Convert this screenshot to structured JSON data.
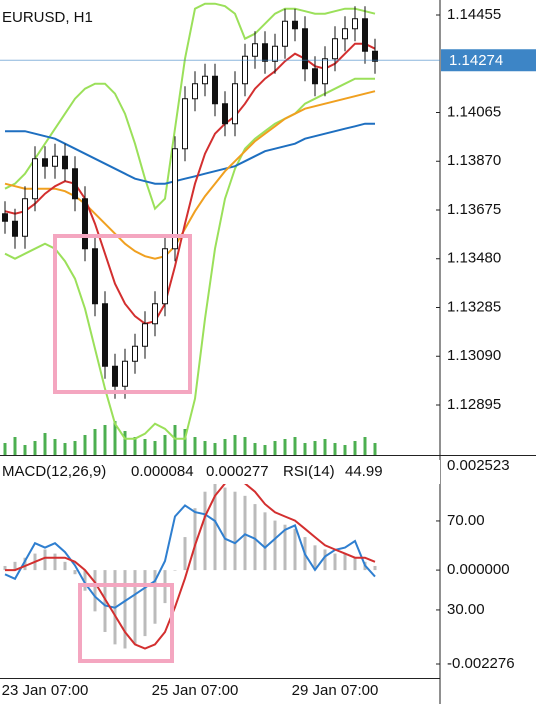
{
  "chart_data": [
    {
      "type": "candlestick",
      "title": "EURUSD, H1",
      "categories": [
        null,
        null,
        null,
        null,
        "23 Jan 07:00",
        null,
        null,
        null,
        null,
        null,
        null,
        null,
        null,
        null,
        null,
        null,
        null,
        null,
        null,
        "25 Jan 07:00",
        null,
        null,
        null,
        null,
        null,
        null,
        null,
        null,
        null,
        null,
        null,
        null,
        null,
        "29 Jan 07:00",
        null,
        null,
        null,
        null
      ],
      "open": [
        1.1366,
        1.1363,
        1.1357,
        1.1372,
        1.1388,
        1.1385,
        1.1389,
        1.1384,
        1.1372,
        1.1352,
        1.133,
        1.1305,
        1.1297,
        1.1307,
        1.1313,
        1.1322,
        1.133,
        1.1352,
        1.1392,
        1.1412,
        1.1418,
        1.1421,
        1.141,
        1.1402,
        1.1418,
        1.1429,
        1.1434,
        1.1427,
        1.1433,
        1.1443,
        1.144,
        1.1424,
        1.1418,
        1.1428,
        1.1436,
        1.144,
        1.1444,
        1.1431
      ],
      "high": [
        1.1371,
        1.1368,
        1.1377,
        1.1393,
        1.1393,
        1.1394,
        1.1394,
        1.1389,
        1.1377,
        1.1357,
        1.1335,
        1.131,
        1.1312,
        1.1318,
        1.1327,
        1.1335,
        1.1357,
        1.1397,
        1.1417,
        1.1423,
        1.1426,
        1.1426,
        1.1415,
        1.1423,
        1.1434,
        1.1439,
        1.1439,
        1.1438,
        1.1448,
        1.1448,
        1.1445,
        1.1429,
        1.1433,
        1.1441,
        1.1445,
        1.1449,
        1.1449,
        1.1436
      ],
      "low": [
        1.1358,
        1.1352,
        1.1352,
        1.1367,
        1.138,
        1.138,
        1.1379,
        1.1367,
        1.1347,
        1.1325,
        1.13,
        1.1292,
        1.1292,
        1.1302,
        1.1308,
        1.1317,
        1.1325,
        1.1347,
        1.1387,
        1.1407,
        1.1413,
        1.1405,
        1.1397,
        1.1397,
        1.1413,
        1.1424,
        1.1422,
        1.1422,
        1.1428,
        1.1435,
        1.1419,
        1.1413,
        1.1413,
        1.1423,
        1.1431,
        1.1435,
        1.1426,
        1.1422
      ],
      "close": [
        1.1363,
        1.1357,
        1.1372,
        1.1388,
        1.1385,
        1.1389,
        1.1384,
        1.1372,
        1.1352,
        1.133,
        1.1305,
        1.1297,
        1.1307,
        1.1313,
        1.1322,
        1.133,
        1.1352,
        1.1392,
        1.1412,
        1.1418,
        1.1421,
        1.141,
        1.1402,
        1.1418,
        1.1429,
        1.1434,
        1.1427,
        1.1433,
        1.1443,
        1.144,
        1.1424,
        1.1418,
        1.1428,
        1.1436,
        1.144,
        1.1444,
        1.1431,
        1.1427
      ],
      "candle_color": "#111111",
      "series": [
        {
          "color": "#9be05a",
          "values": [
            1.1376,
            1.1378,
            1.1382,
            1.1388,
            1.1394,
            1.14,
            1.1406,
            1.1412,
            1.1416,
            1.1418,
            1.1418,
            1.1414,
            1.1406,
            1.1394,
            1.138,
            1.1368,
            1.1372,
            1.14,
            1.1428,
            1.1448,
            1.145,
            1.145,
            1.1449,
            1.1446,
            1.1436,
            1.1438,
            1.1442,
            1.1446,
            1.1448,
            1.1448,
            1.1447,
            1.1446,
            1.1446,
            1.1447,
            1.1448,
            1.1448,
            1.1447,
            1.1446
          ]
        },
        {
          "color": "#9be05a",
          "values": [
            1.135,
            1.1348,
            1.135,
            1.1352,
            1.1354,
            1.1352,
            1.1347,
            1.134,
            1.1328,
            1.1312,
            1.1296,
            1.1282,
            1.1276,
            1.1276,
            1.1278,
            1.1282,
            1.128,
            1.1276,
            1.1276,
            1.1292,
            1.1324,
            1.1352,
            1.1372,
            1.1384,
            1.1392,
            1.1396,
            1.1399,
            1.1402,
            1.1404,
            1.1406,
            1.141,
            1.1412,
            1.1414,
            1.1416,
            1.1418,
            1.142,
            1.142,
            1.142
          ]
        },
        {
          "color": "#1e6fc0",
          "values": [
            1.1399,
            1.1399,
            1.1399,
            1.1398,
            1.1397,
            1.1396,
            1.1394,
            1.1392,
            1.139,
            1.1388,
            1.1386,
            1.1384,
            1.1382,
            1.138,
            1.1379,
            1.1378,
            1.1378,
            1.1379,
            1.138,
            1.1381,
            1.1382,
            1.1383,
            1.1384,
            1.1385,
            1.1387,
            1.1389,
            1.1391,
            1.1392,
            1.1393,
            1.1394,
            1.1396,
            1.1397,
            1.1398,
            1.1399,
            1.14,
            1.1401,
            1.1402,
            1.1402
          ]
        },
        {
          "color": "#f0a020",
          "values": [
            1.1378,
            1.1377,
            1.1376,
            1.1376,
            1.1376,
            1.1376,
            1.1375,
            1.1373,
            1.137,
            1.1366,
            1.1362,
            1.1358,
            1.1354,
            1.1351,
            1.1349,
            1.1348,
            1.1349,
            1.1353,
            1.136,
            1.1367,
            1.1373,
            1.1378,
            1.1383,
            1.1387,
            1.1391,
            1.1395,
            1.1398,
            1.1401,
            1.1404,
            1.1406,
            1.1408,
            1.1409,
            1.141,
            1.1411,
            1.1412,
            1.1413,
            1.1414,
            1.1415
          ]
        },
        {
          "color": "#d32f2f",
          "values": [
            1.1367,
            1.1366,
            1.1367,
            1.137,
            1.1374,
            1.1377,
            1.1379,
            1.1378,
            1.1372,
            1.1362,
            1.135,
            1.1338,
            1.133,
            1.1325,
            1.1322,
            1.1323,
            1.133,
            1.1345,
            1.1362,
            1.1378,
            1.139,
            1.1398,
            1.1402,
            1.1405,
            1.141,
            1.1416,
            1.142,
            1.1423,
            1.1427,
            1.143,
            1.1428,
            1.1425,
            1.1424,
            1.1426,
            1.143,
            1.1434,
            1.1434,
            1.1432
          ]
        }
      ],
      "volume": {
        "color": "#4caf50",
        "values": [
          12,
          18,
          10,
          14,
          22,
          16,
          12,
          14,
          20,
          26,
          30,
          34,
          24,
          18,
          16,
          14,
          20,
          30,
          26,
          18,
          14,
          12,
          16,
          20,
          18,
          12,
          10,
          14,
          16,
          18,
          12,
          14,
          16,
          12,
          10,
          14,
          18,
          12
        ]
      },
      "ylim": [
        1.12695,
        1.14515
      ],
      "yticks": [
        1.14455,
        1.14065,
        {
          "value": 1.1387,
          "label": "1.13870"
        },
        1.13675,
        {
          "value": 1.1348,
          "label": "1.13480"
        },
        1.13285,
        {
          "value": 1.1309,
          "label": "1.13090"
        },
        1.12895
      ],
      "current_price": 1.14274,
      "current_price_color": "#3d85c6"
    },
    {
      "type": "line",
      "title": "MACD(12,26,9)",
      "macd_value": 8.4e-05,
      "signal_value": 0.000277,
      "rsi_title": "RSI(14)",
      "rsi_value": 44.99,
      "histogram": {
        "color": "#bbbbbb",
        "values": [
          0.0001,
          0.0002,
          0.0003,
          0.0004,
          0.0005,
          0.0004,
          0.0002,
          -0.0001,
          -0.0005,
          -0.001,
          -0.0015,
          -0.0018,
          -0.0019,
          -0.0018,
          -0.0016,
          -0.0013,
          -0.0008,
          0,
          0.0008,
          0.0015,
          0.0019,
          0.0021,
          0.002,
          0.0019,
          0.0018,
          0.0016,
          0.0014,
          0.0012,
          0.0011,
          0.001,
          0.0008,
          0.0006,
          0.0005,
          0.0004,
          0.0004,
          0.0003,
          0.0002,
          0.0001
        ]
      },
      "signal": {
        "color": "#d32f2f",
        "values": [
          0,
          0,
          0.0001,
          0.0002,
          0.0003,
          0.0003,
          0.0003,
          0.0002,
          0,
          -0.0003,
          -0.0007,
          -0.0011,
          -0.0015,
          -0.0018,
          -0.0019,
          -0.0018,
          -0.0015,
          -0.0009,
          -0.0002,
          0.0006,
          0.0013,
          0.0018,
          0.0021,
          0.0022,
          0.0021,
          0.0019,
          0.0016,
          0.0014,
          0.0013,
          0.0012,
          0.001,
          0.0008,
          0.0006,
          0.0005,
          0.0004,
          0.0003,
          0.0003,
          0.0002
        ]
      },
      "rsi": {
        "color": "#2f7fd0",
        "axis": "y2",
        "values": [
          46,
          44,
          52,
          60,
          58,
          60,
          56,
          50,
          42,
          36,
          32,
          31,
          34,
          37,
          40,
          43,
          52,
          72,
          77,
          74,
          73,
          70,
          62,
          60,
          64,
          62,
          58,
          62,
          66,
          68,
          55,
          48,
          54,
          57,
          58,
          61,
          50,
          45
        ]
      },
      "ylim": [
        -0.002276,
        0.002523
      ],
      "yticks": [
        0.002523,
        {
          "value": 0,
          "label": "0.000000"
        },
        -0.002276
      ],
      "y2lim": [
        5.7,
        94.7
      ],
      "y2ticks": [
        {
          "value": 70,
          "label": "70.00"
        },
        {
          "value": 30,
          "label": "30.00"
        }
      ]
    }
  ]
}
